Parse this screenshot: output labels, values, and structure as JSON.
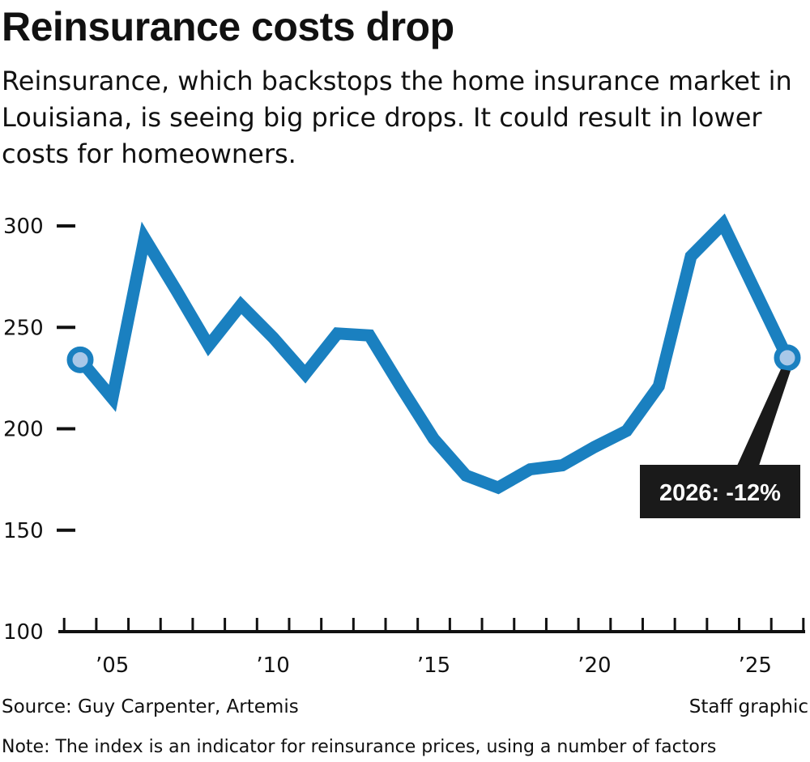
{
  "header": {
    "title": "Reinsurance costs drop",
    "subtitle": "Reinsurance, which backstops the home insurance market in Louisiana, is seeing big price drops. It could result in lower costs for homeowners."
  },
  "footer": {
    "source": "Source: Guy Carpenter, Artemis",
    "credit": "Staff graphic",
    "note": "Note: The index is an indicator for reinsurance prices, using a number of factors"
  },
  "colors": {
    "line": "#1a80c0",
    "marker_fill": "#a9c8e8",
    "callout_bg": "#1a1a1a",
    "axis": "#111111"
  },
  "chart_data": {
    "type": "line",
    "x": [
      2004,
      2005,
      2006,
      2007,
      2008,
      2009,
      2010,
      2011,
      2012,
      2013,
      2014,
      2015,
      2016,
      2017,
      2018,
      2019,
      2020,
      2021,
      2022,
      2023,
      2024,
      2025,
      2026
    ],
    "series": [
      {
        "values": [
          234,
          215,
          294,
          268,
          241,
          261,
          245,
          227,
          247,
          246,
          220,
          195,
          177,
          171,
          180,
          182,
          191,
          199,
          221,
          285,
          301,
          268,
          235
        ]
      }
    ],
    "ylim": [
      100,
      300
    ],
    "yticks": [
      100,
      150,
      200,
      250,
      300
    ],
    "xlim": [
      2004,
      2026
    ],
    "xticks": [
      2005,
      2010,
      2015,
      2020,
      2025
    ],
    "xtick_labels": [
      "’05",
      "’10",
      "’15",
      "’20",
      "’25"
    ],
    "annotation": {
      "x": 2026,
      "text": "2026: -12%"
    },
    "grid": false
  }
}
